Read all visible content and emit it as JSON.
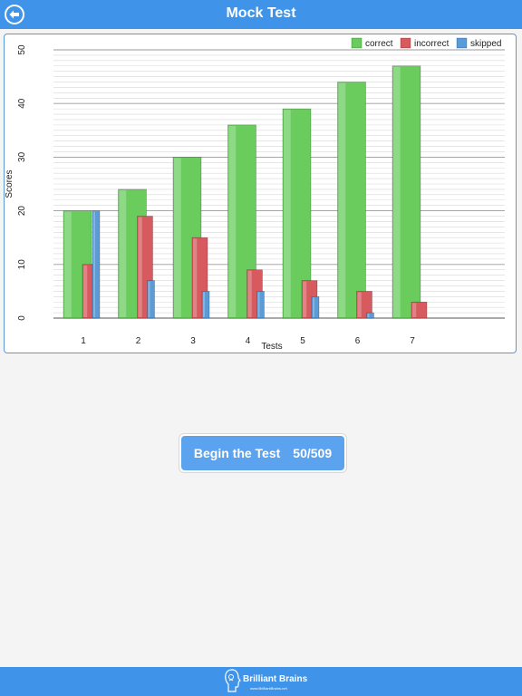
{
  "header": {
    "title": "Mock Test"
  },
  "chart_data": {
    "type": "bar",
    "title": "",
    "xlabel": "Tests",
    "ylabel": "Scores",
    "ylim": [
      0,
      50
    ],
    "yticks": [
      0,
      10,
      20,
      30,
      40,
      50
    ],
    "grid": true,
    "legend_position": "top-right",
    "categories": [
      "1",
      "2",
      "3",
      "4",
      "5",
      "6",
      "7"
    ],
    "series": [
      {
        "name": "correct",
        "color": "#69cc5c",
        "values": [
          20,
          24,
          30,
          36,
          39,
          44,
          47
        ]
      },
      {
        "name": "incorrect",
        "color": "#d65a5e",
        "values": [
          10,
          19,
          15,
          9,
          7,
          5,
          3
        ]
      },
      {
        "name": "skipped",
        "color": "#5a9bd8",
        "values": [
          20,
          7,
          5,
          5,
          4,
          1,
          0
        ]
      }
    ]
  },
  "action": {
    "label": "Begin the Test",
    "progress": "50/509"
  },
  "footer": {
    "brand": "Brilliant Brains",
    "brand_sub": "www.BrilliantBrains.net"
  },
  "colors": {
    "accent": "#3f93e8",
    "button": "#5ca3ef"
  },
  "icons": {
    "back": "back-arrow-icon",
    "logo": "brain-head-icon"
  }
}
